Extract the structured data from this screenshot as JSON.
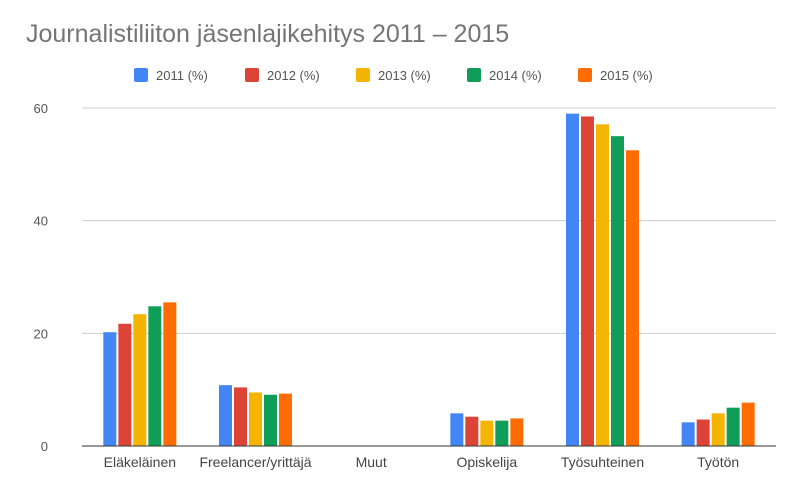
{
  "chart_data": {
    "type": "bar",
    "title": "Journalistiliiton jäsenlajikehitys 2011 – 2015",
    "xlabel": "",
    "ylabel": "",
    "ylim": [
      0,
      64
    ],
    "yticks": [
      0,
      20,
      40,
      60
    ],
    "grid": true,
    "legend_position": "top",
    "categories": [
      "Eläkeläinen",
      "Freelancer/yrittäjä",
      "Muut",
      "Opiskelija",
      "Työsuhteinen",
      "Työtön"
    ],
    "series": [
      {
        "name": "2011 (%)",
        "color": "#4285F4",
        "values": [
          20.2,
          10.8,
          0,
          5.8,
          59.0,
          4.2
        ]
      },
      {
        "name": "2012 (%)",
        "color": "#DB4437",
        "values": [
          21.7,
          10.4,
          0,
          5.2,
          58.5,
          4.7
        ]
      },
      {
        "name": "2013 (%)",
        "color": "#F4B400",
        "values": [
          23.4,
          9.5,
          0,
          4.5,
          57.1,
          5.8
        ]
      },
      {
        "name": "2014 (%)",
        "color": "#0F9D58",
        "values": [
          24.8,
          9.1,
          0,
          4.5,
          55.0,
          6.8
        ]
      },
      {
        "name": "2015 (%)",
        "color": "#FF6D00",
        "values": [
          25.5,
          9.3,
          0,
          4.9,
          52.5,
          7.7
        ]
      }
    ]
  }
}
